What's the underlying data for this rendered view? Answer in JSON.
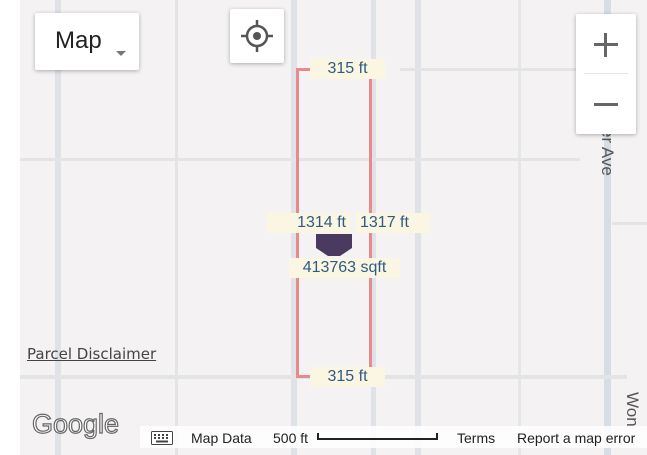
{
  "map_type": {
    "label": "Map"
  },
  "parcel": {
    "top_width": "315 ft",
    "bottom_width": "315 ft",
    "left_length": "1314 ft",
    "right_length": "1317 ft",
    "area": "413763 sqft"
  },
  "streets": [
    "er Ave",
    "Won"
  ],
  "disclaimer": "Parcel Disclaimer",
  "logo": "Google",
  "footer": {
    "map_data": "Map Data",
    "scale": "500 ft",
    "terms": "Terms",
    "report": "Report a map error"
  },
  "colors": {
    "parcel_outline": "#e88a8a",
    "marker": "#4a3a60",
    "label_bg": "#fbf6e1",
    "label_text": "#2f5a86"
  },
  "icons": [
    "chevron-down-icon",
    "locate-icon",
    "plus-icon",
    "minus-icon",
    "keyboard-icon",
    "parcel-marker-icon"
  ]
}
